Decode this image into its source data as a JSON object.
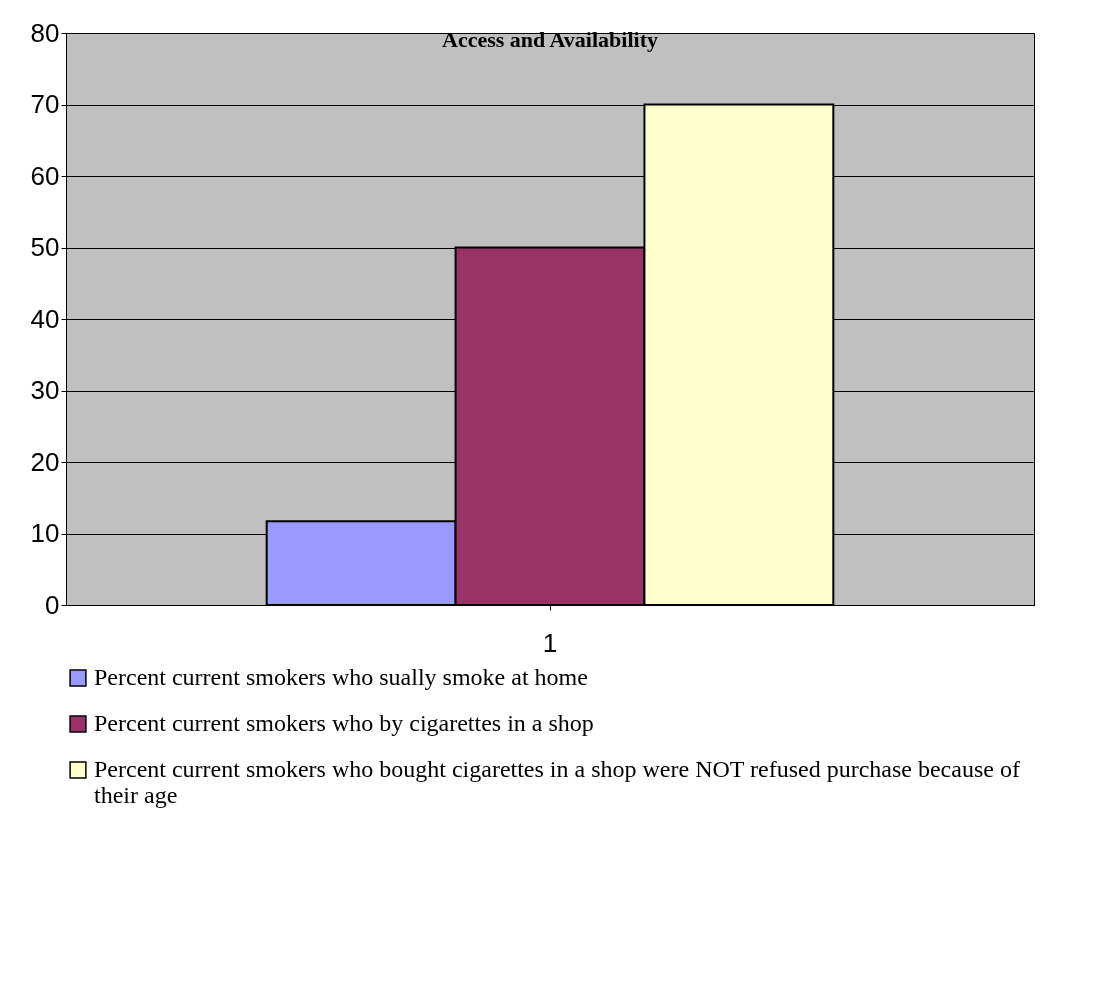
{
  "chart_data": {
    "type": "bar",
    "title": "Access and Availability",
    "categories": [
      "1"
    ],
    "series": [
      {
        "name": "Percent current smokers who sually smoke at home",
        "color": "#9999ff",
        "values": [
          11.7
        ]
      },
      {
        "name": "Percent current smokers who by cigarettes in a shop",
        "color": "#993366",
        "values": [
          50
        ]
      },
      {
        "name": "Percent current smokers who bought cigarettes in a shop were NOT refused purchase because of their age",
        "color": "#ffffcc",
        "values": [
          70
        ]
      }
    ],
    "ylim": [
      0,
      80
    ],
    "yticks": [
      0,
      10,
      20,
      30,
      40,
      50,
      60,
      70,
      80
    ],
    "grid": "y",
    "legend": "bottom"
  }
}
